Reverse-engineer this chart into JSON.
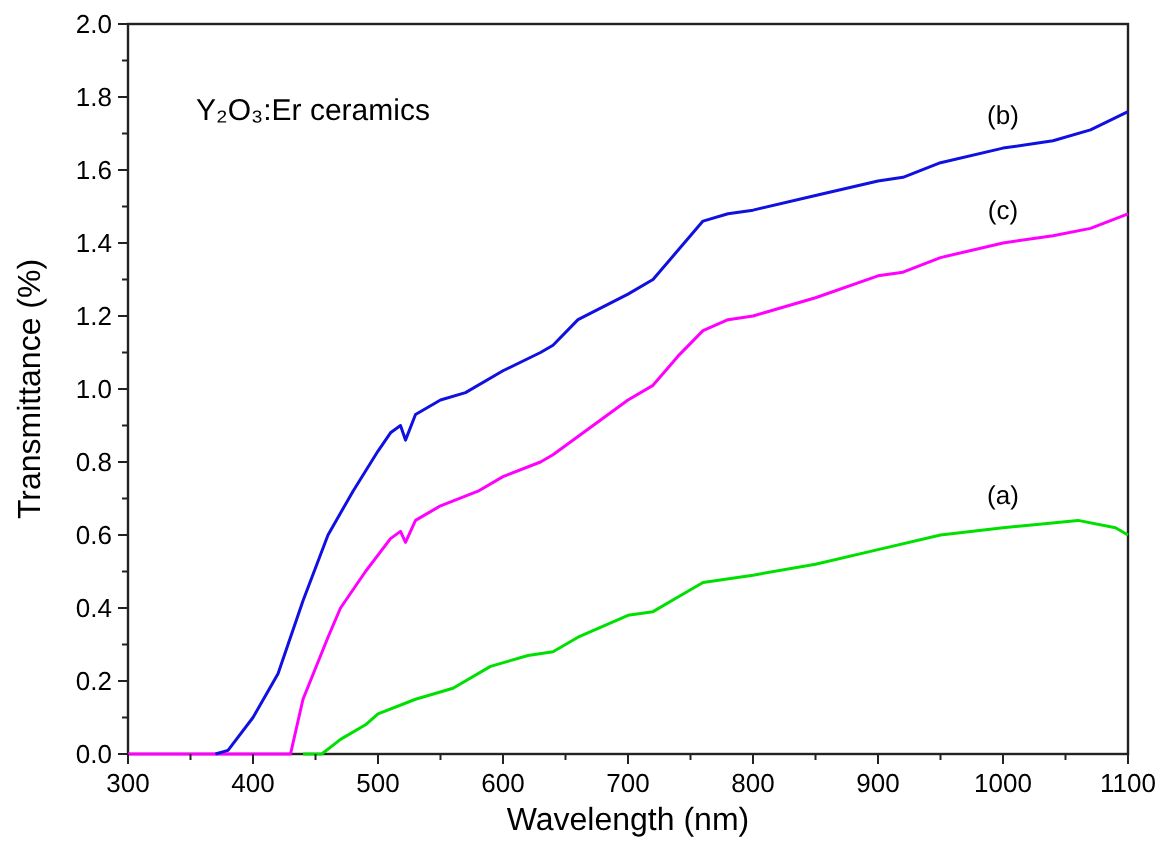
{
  "chart_data": {
    "type": "line",
    "xlabel": "Wavelength (nm)",
    "ylabel": "Transmittance (%)",
    "xlim": [
      300,
      1100
    ],
    "ylim": [
      0,
      2.0
    ],
    "xticks": [
      300,
      {
        "value": 350,
        "label": null
      },
      400,
      {
        "value": 450,
        "label": null
      },
      500,
      {
        "value": 550,
        "label": null
      },
      600,
      {
        "value": 650,
        "label": null
      },
      700,
      {
        "value": 750,
        "label": null
      },
      800,
      {
        "value": 850,
        "label": null
      },
      900,
      {
        "value": 950,
        "label": null
      },
      1000,
      {
        "value": 1050,
        "label": null
      },
      1100
    ],
    "yticks": [
      {
        "value": 0,
        "label": "0.0"
      },
      {
        "value": 0.1,
        "label": null
      },
      0.2,
      {
        "value": 0.3,
        "label": null
      },
      0.4,
      {
        "value": 0.5,
        "label": null
      },
      0.6,
      {
        "value": 0.7,
        "label": null
      },
      0.8,
      {
        "value": 0.9,
        "label": null
      },
      {
        "value": 1.0,
        "label": "1.0"
      },
      {
        "value": 1.1,
        "label": null
      },
      1.2,
      {
        "value": 1.3,
        "label": null
      },
      1.4,
      {
        "value": 1.5,
        "label": null
      },
      1.6,
      {
        "value": 1.7,
        "label": null
      },
      1.8,
      {
        "value": 1.9,
        "label": null
      },
      {
        "value": 2.0,
        "label": "2.0"
      }
    ],
    "grid": false,
    "line_style": "solid",
    "annotations": [
      "Y₂O₃:Er ceramics"
    ],
    "series": [
      {
        "name": "(c)",
        "color": "#ff00ff",
        "x": [
          300,
          430,
          440,
          460,
          470,
          490,
          510,
          518,
          522,
          530,
          550,
          580,
          600,
          630,
          640,
          660,
          700,
          720,
          740,
          760,
          780,
          800,
          850,
          900,
          920,
          950,
          1000,
          1040,
          1070,
          1100
        ],
        "values": [
          0,
          0,
          0.15,
          0.32,
          0.4,
          0.5,
          0.59,
          0.61,
          0.58,
          0.64,
          0.68,
          0.72,
          0.76,
          0.8,
          0.82,
          0.87,
          0.97,
          1.01,
          1.09,
          1.16,
          1.19,
          1.2,
          1.25,
          1.31,
          1.32,
          1.36,
          1.4,
          1.42,
          1.44,
          1.48
        ]
      },
      {
        "name": "(b)",
        "color": "#1010e0",
        "x": [
          370,
          380,
          400,
          420,
          440,
          460,
          480,
          500,
          510,
          518,
          522,
          530,
          550,
          570,
          600,
          630,
          640,
          660,
          700,
          720,
          740,
          760,
          780,
          800,
          850,
          900,
          920,
          950,
          1000,
          1040,
          1070,
          1100
        ],
        "values": [
          0,
          0.01,
          0.1,
          0.22,
          0.42,
          0.6,
          0.72,
          0.83,
          0.88,
          0.9,
          0.86,
          0.93,
          0.97,
          0.99,
          1.05,
          1.1,
          1.12,
          1.19,
          1.26,
          1.3,
          1.38,
          1.46,
          1.48,
          1.49,
          1.53,
          1.57,
          1.58,
          1.62,
          1.66,
          1.68,
          1.71,
          1.76
        ]
      },
      {
        "name": "(a)",
        "color": "#00e000",
        "x": [
          440,
          455,
          470,
          490,
          500,
          530,
          560,
          590,
          620,
          640,
          660,
          700,
          720,
          740,
          760,
          800,
          850,
          900,
          950,
          1000,
          1060,
          1090,
          1100
        ],
        "values": [
          0,
          0,
          0.04,
          0.08,
          0.11,
          0.15,
          0.18,
          0.24,
          0.27,
          0.28,
          0.32,
          0.38,
          0.39,
          0.43,
          0.47,
          0.49,
          0.52,
          0.56,
          0.6,
          0.62,
          0.64,
          0.62,
          0.6
        ]
      }
    ]
  }
}
